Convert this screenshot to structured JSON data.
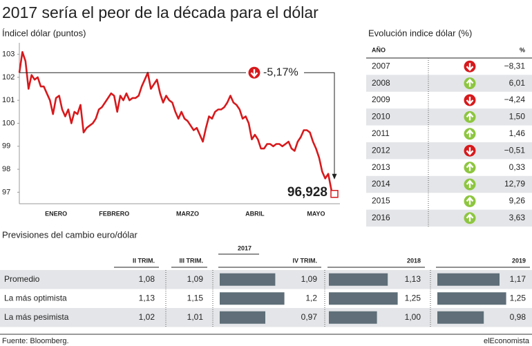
{
  "title": "2017 sería el peor de la década para el dólar",
  "chart_data": {
    "type": "line",
    "subtitle": "Índicel dólar (puntos)",
    "categories": [
      null,
      null,
      null,
      null,
      null,
      null,
      null,
      null,
      null,
      null,
      null,
      null,
      "ENERO",
      null,
      null,
      null,
      null,
      null,
      null,
      null,
      null,
      null,
      null,
      null,
      null,
      null,
      null,
      null,
      null,
      null,
      null,
      "FEBRERO",
      null,
      null,
      null,
      null,
      null,
      null,
      null,
      null,
      null,
      null,
      null,
      null,
      null,
      null,
      null,
      null,
      null,
      null,
      null,
      null,
      null,
      null,
      null,
      "MARZO",
      null,
      null,
      null,
      null,
      null,
      null,
      null,
      null,
      null,
      null,
      null,
      null,
      null,
      null,
      null,
      null,
      null,
      null,
      null,
      null,
      null,
      "ABRIL",
      null,
      null,
      null,
      null,
      null,
      null,
      null,
      null,
      null,
      null,
      null,
      null,
      null,
      null,
      null,
      null,
      null,
      null,
      null,
      "MAYO",
      null,
      null,
      null,
      null,
      null,
      null
    ],
    "series": [
      {
        "color": "#d7191c",
        "values": [
          102.2,
          103.1,
          102.7,
          101.5,
          102.1,
          101.9,
          102.0,
          101.6,
          101.6,
          101.3,
          101.0,
          100.4,
          101.1,
          101.2,
          100.6,
          100.3,
          100.6,
          100.0,
          100.5,
          100.4,
          100.8,
          99.6,
          99.8,
          99.9,
          100.0,
          100.2,
          100.6,
          100.7,
          100.9,
          101.1,
          101.3,
          101.2,
          100.5,
          101.2,
          101.0,
          101.3,
          101.0,
          101.1,
          101.1,
          101.2,
          101.6,
          101.9,
          102.2,
          101.5,
          101.7,
          101.9,
          101.3,
          100.9,
          101.2,
          101.0,
          100.9,
          100.5,
          100.2,
          100.5,
          100.2,
          100.1,
          99.9,
          99.7,
          99.8,
          99.5,
          99.2,
          99.8,
          100.3,
          100.2,
          100.5,
          100.6,
          100.6,
          100.7,
          100.9,
          101.2,
          100.9,
          100.8,
          100.6,
          100.2,
          100.3,
          100.0,
          99.3,
          99.5,
          99.3,
          98.9,
          98.9,
          99.1,
          99.1,
          99.0,
          99.1,
          99.1,
          99.0,
          99.1,
          99.2,
          98.9,
          98.8,
          99.2,
          99.4,
          99.7,
          99.7,
          99.6,
          99.2,
          98.9,
          98.5,
          97.9,
          97.6,
          97.8,
          97.1,
          96.928
        ]
      }
    ],
    "ylim": [
      96.5,
      103.5
    ],
    "yticks": [
      97,
      98,
      99,
      100,
      101,
      102,
      103
    ],
    "annotations": [
      "-5,17%",
      "96,928"
    ]
  },
  "table": {
    "title": "Evolución indice dólar (%)",
    "columns": [
      "AÑO",
      "%"
    ],
    "rows": [
      [
        "2007",
        "−8,31"
      ],
      [
        "2008",
        "6,01"
      ],
      [
        "2009",
        "−4,24"
      ],
      [
        "2010",
        "1,50"
      ],
      [
        "2011",
        "1,46"
      ],
      [
        "2012",
        "−0,51"
      ],
      [
        "2013",
        "0,33"
      ],
      [
        "2014",
        "12,79"
      ],
      [
        "2015",
        "9,26"
      ],
      [
        "2016",
        "3,63"
      ]
    ]
  },
  "forecast": {
    "title": "Previsiones del cambio euro/dólar",
    "group": "2017",
    "columns": [
      "II TRIM.",
      "III TRIM.",
      "IV TRIM.",
      "2018",
      "2019"
    ],
    "rows": [
      [
        "Promedio",
        "1,08",
        "1,09",
        "1,09",
        "1,13",
        "1,17"
      ],
      [
        "La más optimista",
        "1,13",
        "1,15",
        "1,2",
        "1,25",
        "1,25"
      ],
      [
        "La más pesimista",
        "1,02",
        "1,01",
        "0,97",
        "1,00",
        "0,98"
      ]
    ]
  },
  "footer": {
    "source": "Fuente: Bloomberg.",
    "brand": "elEconomista"
  }
}
